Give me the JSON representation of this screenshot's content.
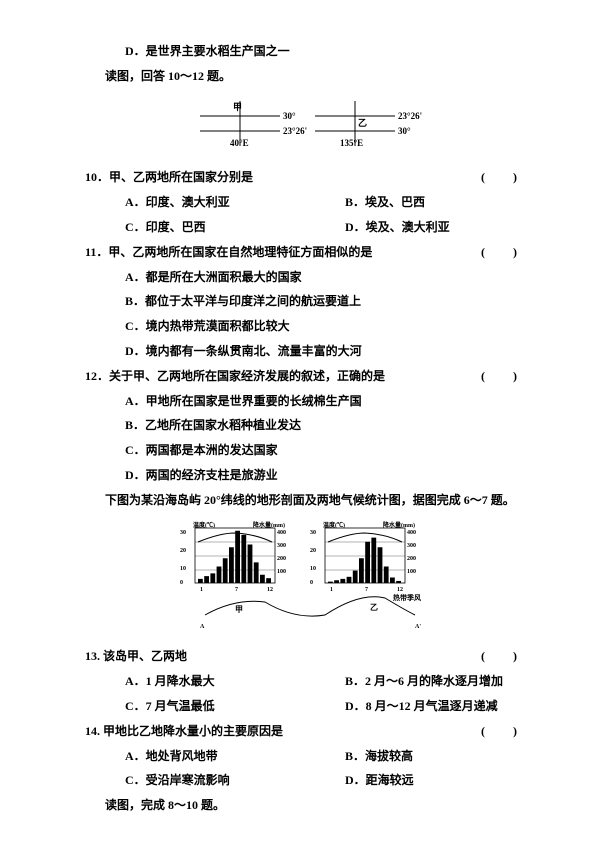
{
  "lineD_rice": "D．是世界主要水稻生产国之一",
  "instr_10_12": "读图，回答 10～12 题。",
  "diagram1": {
    "labels": {
      "jia": "甲",
      "yi": "乙",
      "lat30": "30°",
      "lat2326": "23°26'",
      "lon40E": "40°E",
      "lon135E": "135°E"
    },
    "line_color": "#000000",
    "bg_color": "#ffffff"
  },
  "q10": {
    "stem": "10．甲、乙两地所在国家分别是",
    "A": "A．印度、澳大利亚",
    "B": "B．埃及、巴西",
    "C": "C．印度、巴西",
    "D": "D．埃及、澳大利亚",
    "bracket": "(　)"
  },
  "q11": {
    "stem": "11．甲、乙两地所在国家在自然地理特征方面相似的是",
    "A": "A．都是所在大洲面积最大的国家",
    "B": "B．都位于太平洋与印度洋之间的航运要道上",
    "C": "C．境内热带荒漠面积都比较大",
    "D": "D．境内都有一条纵贯南北、流量丰富的大河",
    "bracket": "(　)"
  },
  "q12": {
    "stem": "12．关于甲、乙两地所在国家经济发展的叙述，正确的是",
    "A": "A．甲地所在国家是世界重要的长绒棉生产国",
    "B": "B．乙地所在国家水稻种植业发达",
    "C": "C．两国都是本洲的发达国家",
    "D": "D．两国的经济支柱是旅游业",
    "bracket": "(　)"
  },
  "instr_6_7": "下图为某沿海岛屿 20°纬线的地形剖面及两地气候统计图，据图完成 6～7 题。",
  "diagram2": {
    "left_title": "温度(℃)",
    "left_title2": "降水量(mm)",
    "right_title": "温度(℃)",
    "right_title2": "降水量(mm)",
    "jia": "甲",
    "yi": "乙",
    "type_tropic": "热带季风",
    "y_temp": [
      0,
      10,
      20,
      30
    ],
    "y_precip": [
      0,
      100,
      200,
      300,
      400
    ],
    "bars_left": [
      30,
      50,
      70,
      120,
      180,
      260,
      380,
      350,
      280,
      150,
      60,
      35
    ],
    "bars_right": [
      10,
      20,
      30,
      45,
      90,
      180,
      300,
      330,
      260,
      120,
      40,
      15
    ],
    "bar_color": "#000000",
    "line_color": "#000000"
  },
  "q13": {
    "stem": "13. 该岛甲、乙两地",
    "A": "A．1 月降水最大",
    "B": "B．2 月～6 月的降水逐月增加",
    "C": "C．7 月气温最低",
    "D": "D．8 月～12 月气温逐月递减",
    "bracket": "(　)"
  },
  "q14": {
    "stem": "14. 甲地比乙地降水量小的主要原因是",
    "A": "A．地处背风地带",
    "B": "B．海拔较高",
    "C": "C．受沿岸寒流影响",
    "D": "D．距海较远",
    "bracket": "(　)"
  },
  "instr_8_10": "读图，完成 8～10 题。"
}
